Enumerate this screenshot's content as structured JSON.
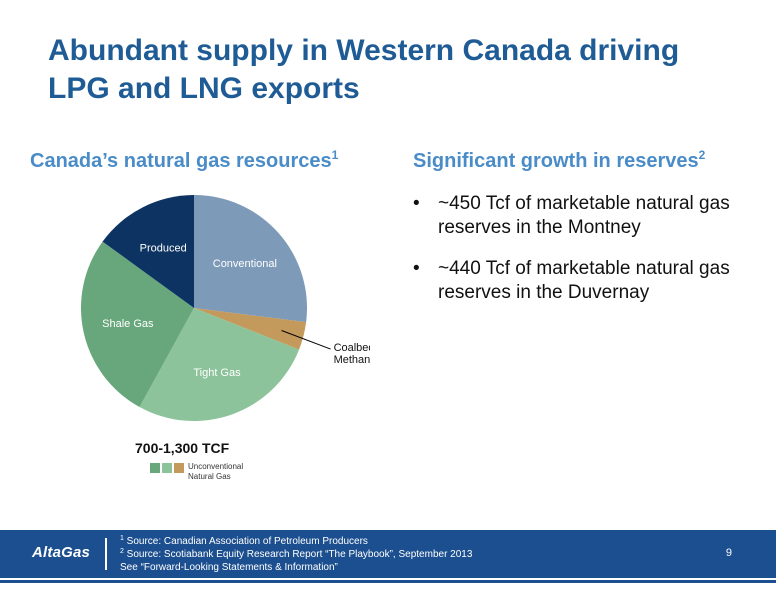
{
  "slide": {
    "title_line1": "Abundant supply in Western Canada driving",
    "title_line2": "LPG and LNG exports"
  },
  "left": {
    "heading": "Canada’s natural gas resources",
    "heading_sup": "1"
  },
  "right": {
    "heading": "Significant growth in reserves",
    "heading_sup": "2",
    "bullets": [
      "~450 Tcf of marketable natural gas reserves in the Montney",
      "~440 Tcf of marketable natural gas reserves in the Duvernay"
    ],
    "bullet_glyph": "•"
  },
  "chart_data": {
    "type": "pie",
    "title": "",
    "slices": [
      {
        "label": "Conventional",
        "value": 27,
        "color": "#7d9ab9"
      },
      {
        "label": "Coalbed Methane",
        "value": 4,
        "color": "#c49a5c"
      },
      {
        "label": "Tight Gas",
        "value": 27,
        "color": "#8dc39b"
      },
      {
        "label": "Shale Gas",
        "value": 27,
        "color": "#68a77c"
      },
      {
        "label": "Produced",
        "value": 15,
        "color": "#0d3363"
      }
    ],
    "total_label": "700-1,300 TCF",
    "legend": {
      "label": "Unconventional Natural Gas",
      "colors": [
        "#68a77c",
        "#8dc39b",
        "#c49a5c"
      ]
    }
  },
  "footer": {
    "logo": "AltaGas",
    "source1_sup": "1",
    "source1": " Source: Canadian Association of Petroleum Producers",
    "source2_sup": "2",
    "source2": " Source: Scotiabank Equity Research Report “The Playbook”, September 2013",
    "note": "See “Forward-Looking Statements & Information”",
    "page_number": "9"
  }
}
